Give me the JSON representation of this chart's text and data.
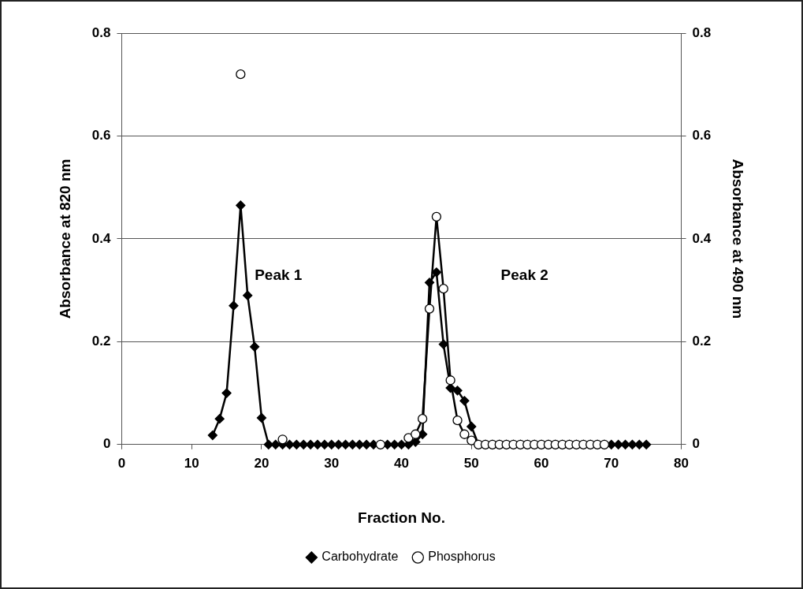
{
  "chart_data": {
    "type": "line",
    "xlabel": "Fraction No.",
    "ylabel": "Absorbance at 820 nm",
    "y2label": "Absorbance at 490 nm",
    "xlim": [
      0,
      80
    ],
    "xticks": [
      0,
      10,
      20,
      30,
      40,
      50,
      60,
      70,
      80
    ],
    "ylim": [
      0,
      0.8
    ],
    "yticks": [
      0,
      0.2,
      0.4,
      0.6,
      0.8
    ],
    "y2lim": [
      0,
      0.8
    ],
    "y2ticks": [
      0,
      0.2,
      0.4,
      0.6,
      0.8
    ],
    "grid": "y",
    "legend": "bottom",
    "line_style": "solid",
    "annotations": [
      "Peak 1",
      "Peak 2"
    ],
    "series": [
      {
        "name": "Carbohydrate",
        "color": "#000000",
        "axis": "y2",
        "marker": "diamond",
        "x": [
          13,
          14,
          15,
          16,
          17,
          18,
          19,
          20,
          21,
          22,
          23,
          24,
          25,
          26,
          27,
          28,
          29,
          30,
          31,
          32,
          33,
          34,
          35,
          36,
          37,
          38,
          39,
          40,
          41,
          42,
          43,
          44,
          45,
          46,
          47,
          48,
          49,
          50,
          51,
          52,
          53,
          54,
          55,
          56,
          57,
          58,
          59,
          60,
          61,
          62,
          63,
          64,
          65,
          66,
          67,
          68,
          69,
          70,
          71,
          72,
          73,
          74,
          75
        ],
        "values": [
          0.018,
          0.05,
          0.1,
          0.27,
          0.465,
          0.29,
          0.19,
          0.052,
          0,
          0,
          0,
          0,
          0,
          0,
          0,
          0,
          0,
          0,
          0,
          0,
          0,
          0,
          0,
          0,
          0,
          0,
          0,
          0,
          0,
          0.005,
          0.02,
          0.315,
          0.335,
          0.195,
          0.11,
          0.105,
          0.085,
          0.035,
          0,
          0,
          0,
          0,
          0,
          0,
          0,
          0,
          0,
          0,
          0,
          0,
          0,
          0,
          0,
          0,
          0,
          0,
          0,
          0,
          0,
          0,
          0,
          0,
          0
        ]
      },
      {
        "name": "Phosphorus",
        "color": "#000000",
        "marker": "circle",
        "x": [
          17,
          18,
          23,
          24,
          37,
          38,
          41,
          42,
          43,
          44,
          45,
          46,
          47,
          48,
          49,
          50,
          51,
          52,
          53,
          54,
          55,
          56,
          57,
          58,
          59,
          60,
          61,
          62,
          63,
          64,
          65,
          66,
          67,
          68,
          69
        ],
        "values": [
          0.72,
          null,
          0.01,
          null,
          0,
          null,
          0.013,
          0.02,
          0.05,
          0.264,
          0.443,
          0.303,
          0.125,
          0.047,
          0.02,
          0.008,
          0,
          0,
          0,
          0,
          0,
          0,
          0,
          0,
          0,
          0,
          0,
          0,
          0,
          0,
          0,
          0,
          0,
          0,
          0
        ]
      }
    ]
  }
}
